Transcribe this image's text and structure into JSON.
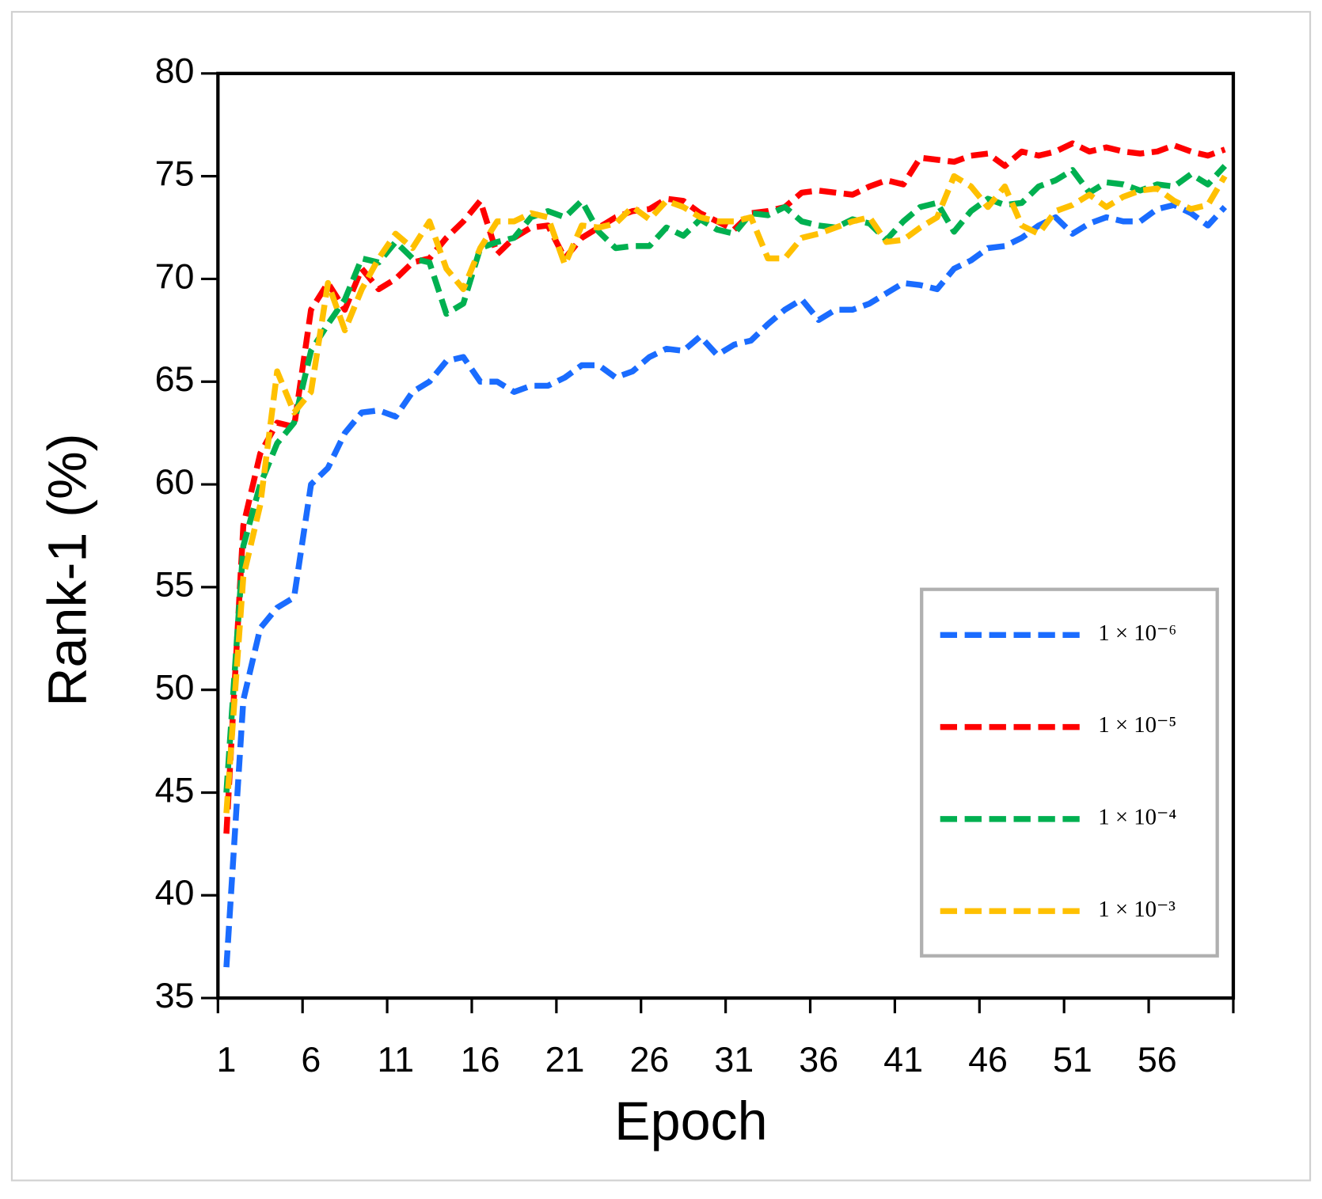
{
  "chart_data": {
    "type": "line",
    "x_label": "Epoch",
    "y_label": "Rank-1 (%)",
    "categories": [
      "1",
      null,
      null,
      null,
      null,
      "6",
      null,
      null,
      null,
      null,
      "11",
      null,
      null,
      null,
      null,
      "16",
      null,
      null,
      null,
      null,
      "21",
      null,
      null,
      null,
      null,
      "26",
      null,
      null,
      null,
      null,
      "31",
      null,
      null,
      null,
      null,
      "36",
      null,
      null,
      null,
      null,
      "41",
      null,
      null,
      null,
      null,
      "46",
      null,
      null,
      null,
      null,
      "51",
      null,
      null,
      null,
      null,
      "56",
      null,
      null,
      null,
      null
    ],
    "ylim": [
      35,
      80
    ],
    "yticks": [
      35,
      40,
      45,
      50,
      55,
      60,
      65,
      70,
      75,
      80
    ],
    "legend_position": "lower right",
    "series": [
      {
        "name": "1 × 10⁻⁶",
        "color": "#1a6cff",
        "values": [
          36.5,
          49.5,
          53,
          54,
          54.5,
          60,
          60.8,
          62.5,
          63.5,
          63.6,
          63.3,
          64.5,
          65,
          66,
          66.2,
          65,
          65,
          64.5,
          64.8,
          64.8,
          65.2,
          65.8,
          65.8,
          65.2,
          65.5,
          66.2,
          66.6,
          66.5,
          67.2,
          66.3,
          66.8,
          67,
          67.8,
          68.5,
          69,
          68,
          68.5,
          68.5,
          68.8,
          69.3,
          69.8,
          69.7,
          69.5,
          70.5,
          70.9,
          71.5,
          71.6,
          72,
          72.6,
          73,
          72.2,
          72.7,
          73,
          72.8,
          72.8,
          73.4,
          73.6,
          73.2,
          72.6,
          73.5
        ]
      },
      {
        "name": "1 × 10⁻⁵",
        "color": "#ff0000",
        "values": [
          43,
          58,
          61.5,
          63,
          62.8,
          68.5,
          69.8,
          68.5,
          70.5,
          69.5,
          70,
          70.8,
          71,
          72,
          72.8,
          73.8,
          71.2,
          72,
          72.5,
          72.6,
          71,
          72,
          72.5,
          73,
          73.3,
          73.4,
          73.9,
          73.8,
          73.2,
          72.8,
          72.4,
          73.2,
          73.3,
          73.5,
          74.2,
          74.3,
          74.2,
          74.1,
          74.5,
          74.8,
          74.6,
          75.9,
          75.8,
          75.7,
          76,
          76.1,
          75.5,
          76.2,
          76,
          76.2,
          76.6,
          76.2,
          76.4,
          76.2,
          76.1,
          76.2,
          76.5,
          76.2,
          76,
          76.3
        ]
      },
      {
        "name": "1 × 10⁻⁴",
        "color": "#00b050",
        "values": [
          45,
          57,
          60,
          62,
          63,
          66.5,
          67.8,
          69,
          71,
          70.8,
          71.8,
          71,
          70.8,
          68.3,
          68.8,
          71.5,
          71.8,
          72,
          73,
          73.3,
          73,
          73.8,
          72.3,
          71.5,
          71.6,
          71.6,
          72.5,
          72.1,
          72.9,
          72.4,
          72.2,
          73.2,
          73.1,
          73.5,
          72.8,
          72.6,
          72.5,
          72.9,
          72.7,
          71.9,
          72.8,
          73.5,
          73.7,
          72.3,
          73.3,
          73.9,
          73.6,
          73.7,
          74.5,
          74.8,
          75.3,
          74.2,
          74.7,
          74.6,
          74.3,
          74.6,
          74.5,
          75.1,
          74.6,
          75.5
        ]
      },
      {
        "name": "1 × 10⁻³",
        "color": "#ffc000",
        "values": [
          44,
          55.5,
          59,
          65.5,
          63.5,
          64.5,
          69.8,
          67.5,
          69.5,
          71,
          72.2,
          71.5,
          72.8,
          70.5,
          69.5,
          71.5,
          72.8,
          72.8,
          73.2,
          73,
          70.7,
          72.6,
          72.5,
          72.7,
          73.5,
          72.9,
          73.8,
          73.5,
          73,
          72.8,
          72.8,
          73,
          71,
          71,
          72,
          72.2,
          72.5,
          72.8,
          73,
          71.8,
          71.9,
          72.5,
          73,
          75,
          74.5,
          73.5,
          74.5,
          72.6,
          72.2,
          73.3,
          73.6,
          74.1,
          73.5,
          74,
          74.3,
          74.4,
          73.8,
          73.4,
          73.6,
          75
        ]
      }
    ]
  }
}
